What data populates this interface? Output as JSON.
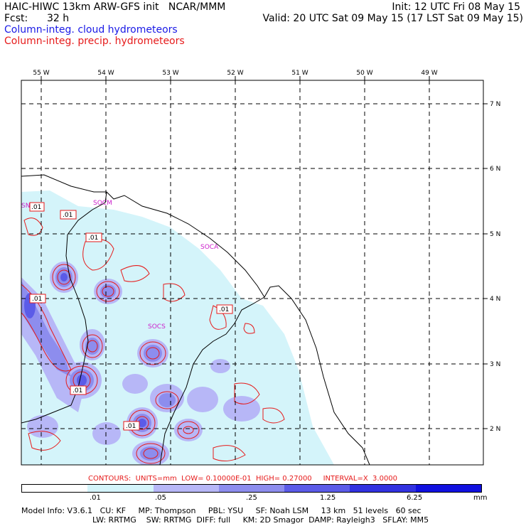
{
  "header": {
    "title_left": "HAIC-HIWC 13km ARW-GFS init   NCAR/MMM",
    "init_time": "Init: 12 UTC Fri 08 May 15",
    "fcst_label": "Fcst:",
    "fcst_value": "32 h",
    "valid_time": "Valid: 20 UTC Sat 09 May 15 (17 LST Sat 09 May 15)",
    "field_cloud": "Column-integ. cloud hydrometeors",
    "field_precip": "Column-integ. precip. hydrometeors"
  },
  "map": {
    "lon_labels": [
      "55 W",
      "54 W",
      "53 W",
      "52 W",
      "51 W",
      "50 W",
      "49 W"
    ],
    "lat_labels": [
      "7 N",
      "6 N",
      "5 N",
      "4 N",
      "3 N",
      "2 N"
    ],
    "region_labels": [
      "SNM",
      "SOCM",
      "SOCA",
      "SOCS"
    ],
    "contour_labels": [
      ".01",
      ".01",
      ".01",
      ".01",
      ".01",
      ".01",
      ".01"
    ]
  },
  "contours": {
    "label": "CONTOURS:",
    "units": "UNITS=mm",
    "low": "LOW= 0.10000E-01",
    "high": "HIGH= 0.27000",
    "interval": "INTERVAL=X  3.0000"
  },
  "colorbar": {
    "colors": [
      "#ffffff",
      "#d4f4fa",
      "#b7b7f7",
      "#8d8dee",
      "#5b5be8",
      "#3232e0",
      "#1010df"
    ],
    "tick_labels": [
      ".01",
      ".05",
      ".25",
      "1.25",
      "6.25"
    ],
    "units": "mm"
  },
  "footer": {
    "line1": [
      "Model Info: V3.6.1",
      "CU: KF",
      "MP: Thompson",
      "PBL: YSU",
      "SF: Noah LSM",
      "13 km",
      "51 levels",
      "60 sec"
    ],
    "line2": [
      "LW: RRTMG",
      "SW: RRTMG",
      "DIFF: full",
      "KM: 2D Smagor",
      "DAMP: Rayleigh3",
      "SFLAY: MM5"
    ]
  }
}
